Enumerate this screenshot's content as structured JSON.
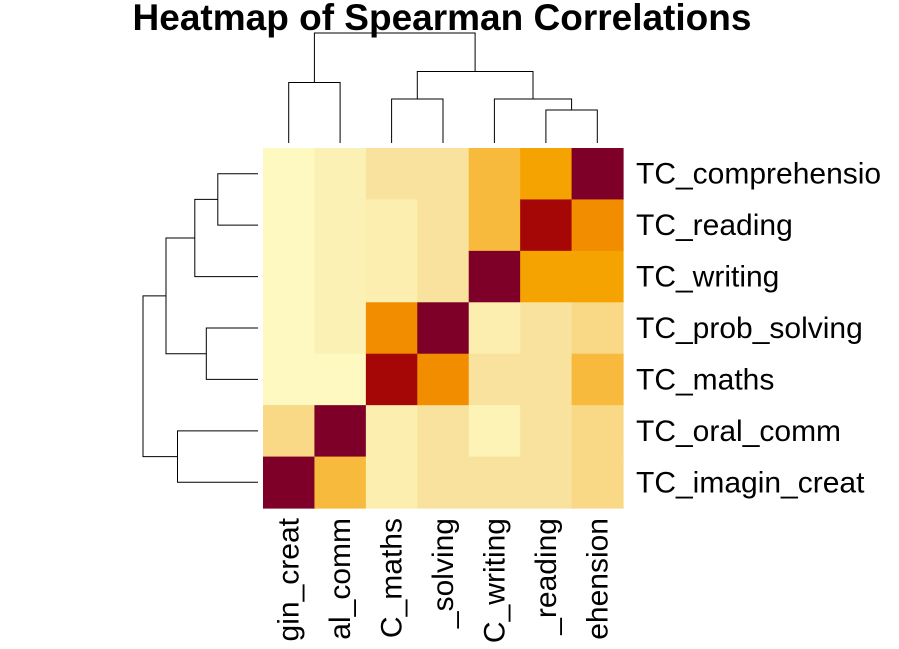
{
  "chart_data": {
    "type": "heatmap",
    "title": "Heatmap of Spearman Correlations",
    "row_labels": [
      "TC_comprehensio",
      "TC_reading",
      "TC_writing",
      "TC_prob_solving",
      "TC_maths",
      "TC_oral_comm",
      "TC_imagin_creat"
    ],
    "col_labels": [
      "gin_creat",
      "al_comm",
      "C_maths",
      "_solving",
      "C_writing",
      "_reading",
      "ehension"
    ],
    "values": [
      [
        0.05,
        0.12,
        0.25,
        0.25,
        0.45,
        0.55,
        1.0
      ],
      [
        0.05,
        0.12,
        0.15,
        0.25,
        0.45,
        0.88,
        0.62
      ],
      [
        0.05,
        0.12,
        0.15,
        0.25,
        1.0,
        0.55,
        0.55
      ],
      [
        0.05,
        0.12,
        0.62,
        1.0,
        0.15,
        0.25,
        0.3
      ],
      [
        0.05,
        0.05,
        0.88,
        0.62,
        0.25,
        0.25,
        0.45
      ],
      [
        0.3,
        1.0,
        0.15,
        0.25,
        0.1,
        0.25,
        0.3
      ],
      [
        1.0,
        0.45,
        0.15,
        0.25,
        0.25,
        0.25,
        0.3
      ]
    ],
    "color_scale": [
      {
        "at": 0.0,
        "color": "#FFFFC8"
      },
      {
        "at": 0.25,
        "color": "#F9E29E"
      },
      {
        "at": 0.45,
        "color": "#F7BA3D"
      },
      {
        "at": 0.55,
        "color": "#F5A300"
      },
      {
        "at": 0.65,
        "color": "#F08400"
      },
      {
        "at": 0.88,
        "color": "#A50606"
      },
      {
        "at": 1.0,
        "color": "#7E0028"
      }
    ],
    "row_dendrogram": [
      [
        0,
        1,
        0.35
      ],
      [
        7,
        2,
        0.55
      ],
      [
        3,
        4,
        0.45
      ],
      [
        8,
        9,
        0.8
      ],
      [
        5,
        6,
        0.7
      ],
      [
        10,
        11,
        1.0
      ]
    ],
    "col_dendrogram": [
      [
        0,
        1,
        0.55
      ],
      [
        2,
        3,
        0.4
      ],
      [
        5,
        6,
        0.3
      ],
      [
        9,
        4,
        0.4
      ],
      [
        8,
        10,
        0.65
      ],
      [
        7,
        11,
        1.0
      ]
    ]
  }
}
